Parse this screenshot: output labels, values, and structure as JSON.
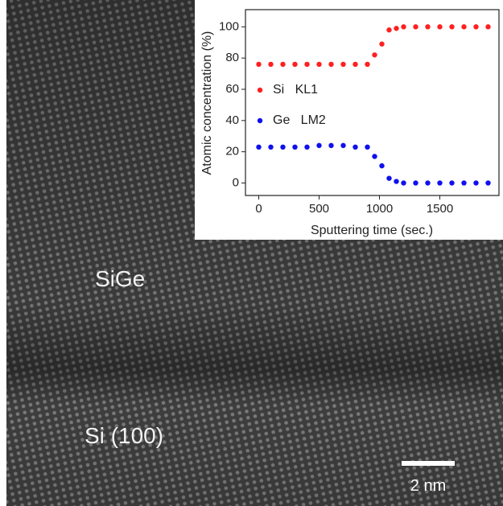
{
  "chart_data": {
    "type": "scatter",
    "xlabel": "Sputtering time (sec.)",
    "ylabel": "Atomic concentration (%)",
    "x": [
      0,
      100,
      200,
      300,
      400,
      500,
      600,
      700,
      800,
      900,
      960,
      1020,
      1080,
      1140,
      1200,
      1300,
      1400,
      1500,
      1600,
      1700,
      1800,
      1900
    ],
    "series": [
      {
        "name": "Si   KL1",
        "color": "#ff2020",
        "values": [
          76,
          76,
          76,
          76,
          76,
          76,
          76,
          76,
          76,
          76,
          82,
          89,
          98,
          99,
          100,
          100,
          100,
          100,
          100,
          100,
          100,
          100
        ]
      },
      {
        "name": "Ge   LM2",
        "color": "#1010ee",
        "values": [
          23,
          23,
          23,
          23,
          23,
          24,
          24,
          24,
          23,
          23,
          17,
          11,
          3,
          1,
          0,
          0,
          0,
          0,
          0,
          0,
          0,
          0
        ]
      }
    ],
    "xlim": [
      -110,
      1990
    ],
    "ylim": [
      -8,
      111
    ],
    "xticks": [
      0,
      500,
      1000,
      1500
    ],
    "yticks": [
      0,
      20,
      40,
      60,
      80,
      100
    ],
    "legend": "left"
  },
  "image_labels": [
    "SiGe",
    "Si (100)"
  ],
  "scale_bar": "2 nm"
}
